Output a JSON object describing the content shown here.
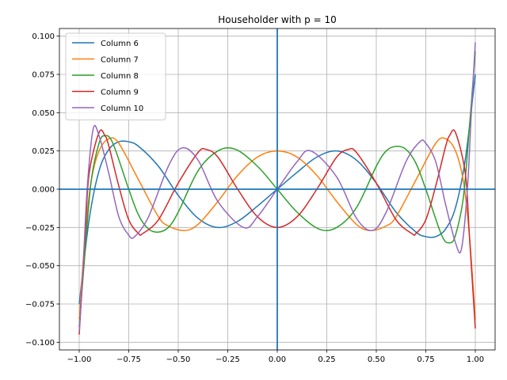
{
  "chart_data": {
    "type": "line",
    "title": "Householder with p = 10",
    "xlabel": "",
    "ylabel": "",
    "xlim": [
      -1.1,
      1.1
    ],
    "ylim": [
      -0.105,
      0.105
    ],
    "xticks": [
      -1.0,
      -0.75,
      -0.5,
      -0.25,
      0.0,
      0.25,
      0.5,
      0.75,
      1.0
    ],
    "xtick_labels": [
      "−1.00",
      "−0.75",
      "−0.50",
      "−0.25",
      "0.00",
      "0.25",
      "0.50",
      "0.75",
      "1.00"
    ],
    "yticks": [
      -0.1,
      -0.075,
      -0.05,
      -0.025,
      0.0,
      0.025,
      0.05,
      0.075,
      0.1
    ],
    "ytick_labels": [
      "−0.100",
      "−0.075",
      "−0.050",
      "−0.025",
      "0.000",
      "0.025",
      "0.050",
      "0.075",
      "0.100"
    ],
    "grid": true,
    "legend_position": "top-left",
    "reference_lines": {
      "x": 0,
      "y": 0,
      "color": "#1f77b4"
    },
    "series": [
      {
        "name": "Column 6",
        "color": "#1f77b4",
        "x": [
          -1.0,
          -0.95,
          -0.9,
          -0.85,
          -0.8,
          -0.75,
          -0.7,
          -0.6,
          -0.5,
          -0.4,
          -0.3,
          -0.2,
          -0.1,
          0.0,
          0.1,
          0.2,
          0.3,
          0.4,
          0.5,
          0.6,
          0.7,
          0.75,
          0.8,
          0.85,
          0.9,
          0.95,
          1.0
        ],
        "y": [
          -0.075,
          -0.02,
          0.012,
          0.026,
          0.031,
          0.031,
          0.028,
          0.015,
          -0.004,
          -0.019,
          -0.025,
          -0.021,
          -0.011,
          0.0,
          0.011,
          0.021,
          0.025,
          0.019,
          0.004,
          -0.015,
          -0.028,
          -0.031,
          -0.031,
          -0.026,
          -0.012,
          0.02,
          0.075
        ]
      },
      {
        "name": "Column 7",
        "color": "#ff7f0e",
        "x": [
          -1.0,
          -0.97,
          -0.94,
          -0.9,
          -0.85,
          -0.8,
          -0.7,
          -0.6,
          -0.55,
          -0.47,
          -0.4,
          -0.3,
          -0.2,
          -0.1,
          0.0,
          0.1,
          0.2,
          0.3,
          0.4,
          0.47,
          0.55,
          0.6,
          0.7,
          0.8,
          0.85,
          0.9,
          0.94,
          0.97,
          1.0
        ],
        "y": [
          -0.085,
          -0.03,
          0.005,
          0.025,
          0.033,
          0.03,
          0.006,
          -0.018,
          -0.024,
          -0.027,
          -0.023,
          -0.008,
          0.009,
          0.021,
          0.025,
          0.021,
          0.009,
          -0.008,
          -0.023,
          -0.027,
          -0.024,
          -0.018,
          0.006,
          0.03,
          0.033,
          0.025,
          0.005,
          -0.03,
          -0.085
        ]
      },
      {
        "name": "Column 8",
        "color": "#2ca02c",
        "x": [
          -1.0,
          -0.97,
          -0.94,
          -0.9,
          -0.87,
          -0.83,
          -0.75,
          -0.7,
          -0.65,
          -0.6,
          -0.55,
          -0.5,
          -0.4,
          -0.3,
          -0.21,
          -0.1,
          0.0,
          0.1,
          0.21,
          0.3,
          0.4,
          0.5,
          0.55,
          0.6,
          0.65,
          0.7,
          0.75,
          0.83,
          0.87,
          0.9,
          0.94,
          0.97,
          1.0
        ],
        "y": [
          -0.09,
          -0.04,
          0.005,
          0.03,
          0.035,
          0.03,
          0.0,
          -0.017,
          -0.026,
          -0.028,
          -0.025,
          -0.015,
          0.012,
          0.025,
          0.026,
          0.015,
          0.0,
          -0.015,
          -0.026,
          -0.025,
          -0.012,
          0.015,
          0.025,
          0.028,
          0.026,
          0.017,
          0.0,
          -0.03,
          -0.035,
          -0.03,
          -0.005,
          0.04,
          0.09
        ]
      },
      {
        "name": "Column 9",
        "color": "#d62728",
        "x": [
          -1.0,
          -0.97,
          -0.95,
          -0.9,
          -0.87,
          -0.85,
          -0.8,
          -0.75,
          -0.7,
          -0.68,
          -0.6,
          -0.5,
          -0.4,
          -0.36,
          -0.3,
          -0.2,
          -0.1,
          0.0,
          0.1,
          0.2,
          0.3,
          0.36,
          0.4,
          0.5,
          0.6,
          0.68,
          0.7,
          0.75,
          0.8,
          0.85,
          0.87,
          0.9,
          0.95,
          0.97,
          1.0
        ],
        "y": [
          -0.095,
          -0.03,
          0.01,
          0.037,
          0.035,
          0.028,
          0.002,
          -0.02,
          -0.029,
          -0.029,
          -0.02,
          0.004,
          0.024,
          0.026,
          0.021,
          0.0,
          -0.018,
          -0.025,
          -0.018,
          0.0,
          0.021,
          0.026,
          0.024,
          0.004,
          -0.02,
          -0.029,
          -0.029,
          -0.02,
          0.002,
          0.028,
          0.035,
          0.037,
          0.01,
          -0.03,
          -0.091
        ]
      },
      {
        "name": "Column 10",
        "color": "#9467bd",
        "x": [
          -1.0,
          -0.98,
          -0.96,
          -0.93,
          -0.9,
          -0.85,
          -0.8,
          -0.75,
          -0.72,
          -0.65,
          -0.55,
          -0.48,
          -0.4,
          -0.3,
          -0.17,
          -0.1,
          0.0,
          0.1,
          0.17,
          0.3,
          0.4,
          0.48,
          0.55,
          0.65,
          0.72,
          0.75,
          0.8,
          0.85,
          0.9,
          0.93,
          0.96,
          0.98,
          1.0
        ],
        "y": [
          -0.093,
          -0.05,
          0.0,
          0.039,
          0.035,
          0.01,
          -0.018,
          -0.03,
          -0.031,
          -0.018,
          0.015,
          0.027,
          0.019,
          -0.008,
          -0.025,
          -0.018,
          0.0,
          0.018,
          0.025,
          0.008,
          -0.019,
          -0.027,
          -0.015,
          0.018,
          0.031,
          0.03,
          0.018,
          -0.01,
          -0.035,
          -0.039,
          0.0,
          0.05,
          0.096
        ]
      }
    ]
  }
}
